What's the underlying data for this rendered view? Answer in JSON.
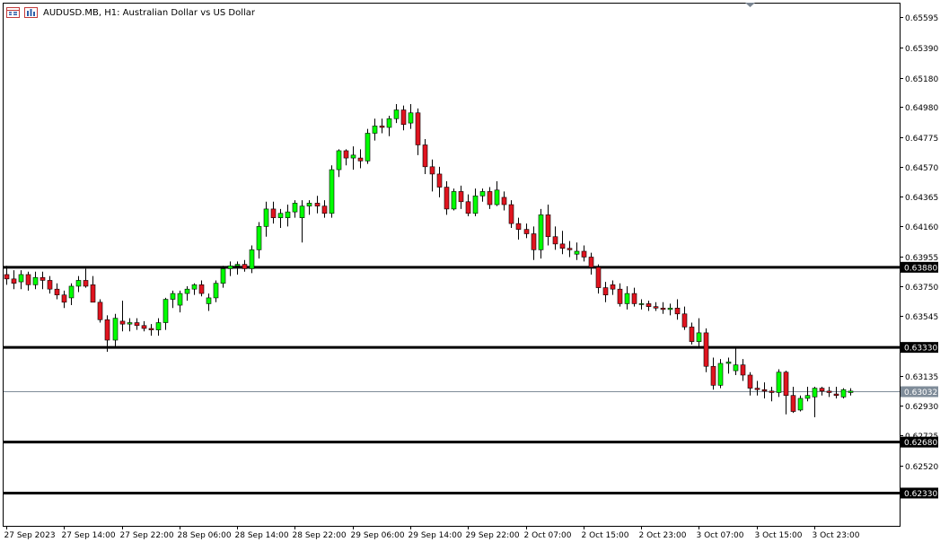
{
  "window": {
    "title": "AUDUSD.MB, H1:  Australian Dollar vs US Dollar"
  },
  "icons": [
    "chart-window-icon",
    "chart-bars-icon",
    "scroll-marker-icon"
  ],
  "colors": {
    "bull": "#00ff00",
    "bear": "#e0141f",
    "wick": "#000000",
    "level_line": "#000000",
    "current_price_line": "#7f8c99",
    "background": "#ffffff"
  },
  "chart_data": {
    "type": "candlestick",
    "symbol": "AUDUSD.MB",
    "timeframe": "H1",
    "title": "AUDUSD.MB, H1:  Australian Dollar vs US Dollar",
    "ylim": [
      0.62105,
      0.6569
    ],
    "y_ticks": [
      0.65595,
      0.6539,
      0.6518,
      0.6498,
      0.64775,
      0.6457,
      0.64365,
      0.6416,
      0.63955,
      0.6375,
      0.63545,
      0.63135,
      0.6293,
      0.62725,
      0.6252
    ],
    "y_tick_labels": [
      "0.65595",
      "0.65390",
      "0.65180",
      "0.64980",
      "0.64775",
      "0.64570",
      "0.64365",
      "0.64160",
      "0.63955",
      "0.63750",
      "0.63545",
      "0.63135",
      "0.62930",
      "0.62725",
      "0.62520"
    ],
    "x_tick_labels": [
      "27 Sep 2023",
      "27 Sep 14:00",
      "27 Sep 22:00",
      "28 Sep 06:00",
      "28 Sep 14:00",
      "28 Sep 22:00",
      "29 Sep 06:00",
      "29 Sep 14:00",
      "29 Sep 22:00",
      "2 Oct 07:00",
      "2 Oct 15:00",
      "2 Oct 23:00",
      "3 Oct 07:00",
      "3 Oct 15:00",
      "3 Oct 23:00"
    ],
    "levels": [
      {
        "value": 0.6388,
        "label": "0.63880"
      },
      {
        "value": 0.6333,
        "label": "0.63330"
      },
      {
        "value": 0.6268,
        "label": "0.62680"
      },
      {
        "value": 0.6233,
        "label": "0.62330"
      }
    ],
    "current_price": {
      "value": 0.63032,
      "label": "0.63032"
    },
    "ohlc": [
      [
        0.6383,
        0.6389,
        0.6376,
        0.638
      ],
      [
        0.638,
        0.6386,
        0.6373,
        0.6377
      ],
      [
        0.6378,
        0.6386,
        0.6373,
        0.6383
      ],
      [
        0.6383,
        0.6385,
        0.6372,
        0.6376
      ],
      [
        0.6376,
        0.6385,
        0.6373,
        0.6381
      ],
      [
        0.6381,
        0.6385,
        0.6373,
        0.6379
      ],
      [
        0.6379,
        0.6382,
        0.637,
        0.6373
      ],
      [
        0.6373,
        0.6377,
        0.6366,
        0.6369
      ],
      [
        0.6369,
        0.6372,
        0.636,
        0.6364
      ],
      [
        0.6367,
        0.6377,
        0.6362,
        0.6375
      ],
      [
        0.6375,
        0.6382,
        0.6371,
        0.6379
      ],
      [
        0.6379,
        0.6387,
        0.6374,
        0.6375
      ],
      [
        0.6376,
        0.6382,
        0.6365,
        0.6364
      ],
      [
        0.6364,
        0.6366,
        0.635,
        0.6352
      ],
      [
        0.6352,
        0.6355,
        0.633,
        0.6338
      ],
      [
        0.6338,
        0.6356,
        0.6333,
        0.6353
      ],
      [
        0.6351,
        0.6365,
        0.6344,
        0.6349
      ],
      [
        0.6349,
        0.6353,
        0.6344,
        0.635
      ],
      [
        0.635,
        0.6353,
        0.6345,
        0.6348
      ],
      [
        0.6348,
        0.6351,
        0.6344,
        0.6346
      ],
      [
        0.6346,
        0.6349,
        0.6341,
        0.6345
      ],
      [
        0.6345,
        0.6353,
        0.6341,
        0.635
      ],
      [
        0.635,
        0.6367,
        0.6345,
        0.6366
      ],
      [
        0.6366,
        0.6372,
        0.636,
        0.637
      ],
      [
        0.6362,
        0.6372,
        0.6357,
        0.637
      ],
      [
        0.637,
        0.6375,
        0.6365,
        0.6373
      ],
      [
        0.6373,
        0.6377,
        0.6369,
        0.6376
      ],
      [
        0.6376,
        0.6379,
        0.6368,
        0.637
      ],
      [
        0.6363,
        0.637,
        0.6358,
        0.6367
      ],
      [
        0.6367,
        0.6379,
        0.6364,
        0.6377
      ],
      [
        0.6377,
        0.6389,
        0.6374,
        0.6387
      ],
      [
        0.6387,
        0.6392,
        0.6382,
        0.6389
      ],
      [
        0.6389,
        0.6392,
        0.6383,
        0.639
      ],
      [
        0.639,
        0.6393,
        0.6385,
        0.6387
      ],
      [
        0.6387,
        0.6403,
        0.6384,
        0.64
      ],
      [
        0.64,
        0.6419,
        0.6394,
        0.6416
      ],
      [
        0.6416,
        0.6433,
        0.6409,
        0.6428
      ],
      [
        0.6428,
        0.6433,
        0.6418,
        0.6422
      ],
      [
        0.6422,
        0.6428,
        0.6415,
        0.6425
      ],
      [
        0.6422,
        0.6431,
        0.6416,
        0.6426
      ],
      [
        0.6426,
        0.6434,
        0.6422,
        0.6432
      ],
      [
        0.6422,
        0.6434,
        0.6405,
        0.643
      ],
      [
        0.643,
        0.6434,
        0.6424,
        0.6432
      ],
      [
        0.6432,
        0.6437,
        0.6425,
        0.643
      ],
      [
        0.643,
        0.6434,
        0.6422,
        0.6425
      ],
      [
        0.6425,
        0.6458,
        0.6422,
        0.6455
      ],
      [
        0.6455,
        0.6469,
        0.645,
        0.6468
      ],
      [
        0.6468,
        0.6469,
        0.6458,
        0.6463
      ],
      [
        0.6463,
        0.6471,
        0.6455,
        0.6465
      ],
      [
        0.6463,
        0.6469,
        0.6456,
        0.6461
      ],
      [
        0.6461,
        0.6483,
        0.6459,
        0.648
      ],
      [
        0.648,
        0.649,
        0.6475,
        0.6485
      ],
      [
        0.6485,
        0.649,
        0.648,
        0.6484
      ],
      [
        0.6484,
        0.6492,
        0.6478,
        0.649
      ],
      [
        0.649,
        0.65,
        0.6487,
        0.6496
      ],
      [
        0.6496,
        0.6499,
        0.6482,
        0.6486
      ],
      [
        0.6487,
        0.65,
        0.6483,
        0.6494
      ],
      [
        0.6494,
        0.6497,
        0.6465,
        0.6472
      ],
      [
        0.6472,
        0.6476,
        0.6452,
        0.6457
      ],
      [
        0.6457,
        0.6462,
        0.644,
        0.6452
      ],
      [
        0.6452,
        0.6457,
        0.6436,
        0.6443
      ],
      [
        0.6443,
        0.6447,
        0.6424,
        0.6428
      ],
      [
        0.6428,
        0.6442,
        0.6427,
        0.644
      ],
      [
        0.644,
        0.6444,
        0.6428,
        0.6433
      ],
      [
        0.6433,
        0.6438,
        0.6423,
        0.6425
      ],
      [
        0.6425,
        0.6442,
        0.6423,
        0.6437
      ],
      [
        0.6437,
        0.6442,
        0.6433,
        0.644
      ],
      [
        0.644,
        0.6443,
        0.6428,
        0.6431
      ],
      [
        0.6431,
        0.6447,
        0.643,
        0.6441
      ],
      [
        0.6436,
        0.644,
        0.6427,
        0.6431
      ],
      [
        0.6431,
        0.6434,
        0.6415,
        0.6418
      ],
      [
        0.6418,
        0.6422,
        0.6407,
        0.6414
      ],
      [
        0.6414,
        0.6418,
        0.6408,
        0.6411
      ],
      [
        0.6411,
        0.6416,
        0.6393,
        0.64
      ],
      [
        0.64,
        0.6428,
        0.6394,
        0.6424
      ],
      [
        0.6424,
        0.6431,
        0.6403,
        0.6409
      ],
      [
        0.6409,
        0.6416,
        0.64,
        0.6404
      ],
      [
        0.6404,
        0.6413,
        0.6397,
        0.6401
      ],
      [
        0.6401,
        0.6406,
        0.6395,
        0.64
      ],
      [
        0.6397,
        0.6405,
        0.6393,
        0.6399
      ],
      [
        0.6399,
        0.6403,
        0.6392,
        0.6395
      ],
      [
        0.6395,
        0.6398,
        0.6383,
        0.6388
      ],
      [
        0.6388,
        0.639,
        0.637,
        0.6374
      ],
      [
        0.6374,
        0.6378,
        0.6364,
        0.6369
      ],
      [
        0.6376,
        0.6379,
        0.6369,
        0.6373
      ],
      [
        0.6373,
        0.6377,
        0.6361,
        0.6363
      ],
      [
        0.6363,
        0.6375,
        0.6359,
        0.637
      ],
      [
        0.637,
        0.6374,
        0.6361,
        0.6363
      ],
      [
        0.6363,
        0.6366,
        0.6359,
        0.6363
      ],
      [
        0.6363,
        0.6365,
        0.6358,
        0.6361
      ],
      [
        0.6361,
        0.6364,
        0.6358,
        0.636
      ],
      [
        0.636,
        0.6364,
        0.6356,
        0.6359
      ],
      [
        0.6359,
        0.6363,
        0.6355,
        0.636
      ],
      [
        0.636,
        0.6366,
        0.6352,
        0.6356
      ],
      [
        0.6356,
        0.6361,
        0.6345,
        0.6347
      ],
      [
        0.6347,
        0.635,
        0.6335,
        0.6337
      ],
      [
        0.6337,
        0.6353,
        0.6333,
        0.6343
      ],
      [
        0.6343,
        0.6346,
        0.6316,
        0.632
      ],
      [
        0.632,
        0.6326,
        0.6304,
        0.6307
      ],
      [
        0.6307,
        0.6325,
        0.6305,
        0.6322
      ],
      [
        0.6322,
        0.6326,
        0.6315,
        0.6323
      ],
      [
        0.6317,
        0.6333,
        0.6314,
        0.6321
      ],
      [
        0.6321,
        0.6325,
        0.631,
        0.6314
      ],
      [
        0.6314,
        0.6316,
        0.63,
        0.6305
      ],
      [
        0.6305,
        0.631,
        0.63,
        0.6304
      ],
      [
        0.6304,
        0.6309,
        0.6298,
        0.6303
      ],
      [
        0.6303,
        0.6306,
        0.6296,
        0.6302
      ],
      [
        0.6302,
        0.6318,
        0.6299,
        0.6316
      ],
      [
        0.6316,
        0.6317,
        0.6287,
        0.63
      ],
      [
        0.63,
        0.6306,
        0.6288,
        0.6289
      ],
      [
        0.629,
        0.63,
        0.6289,
        0.6298
      ],
      [
        0.6298,
        0.6306,
        0.6296,
        0.63
      ],
      [
        0.6299,
        0.6306,
        0.6285,
        0.6305
      ],
      [
        0.6305,
        0.6306,
        0.63,
        0.6303
      ],
      [
        0.6303,
        0.6306,
        0.6299,
        0.6302
      ],
      [
        0.6301,
        0.6306,
        0.6298,
        0.63
      ],
      [
        0.6299,
        0.6305,
        0.6298,
        0.6304
      ],
      [
        0.6302,
        0.6305,
        0.63,
        0.6303
      ]
    ]
  }
}
